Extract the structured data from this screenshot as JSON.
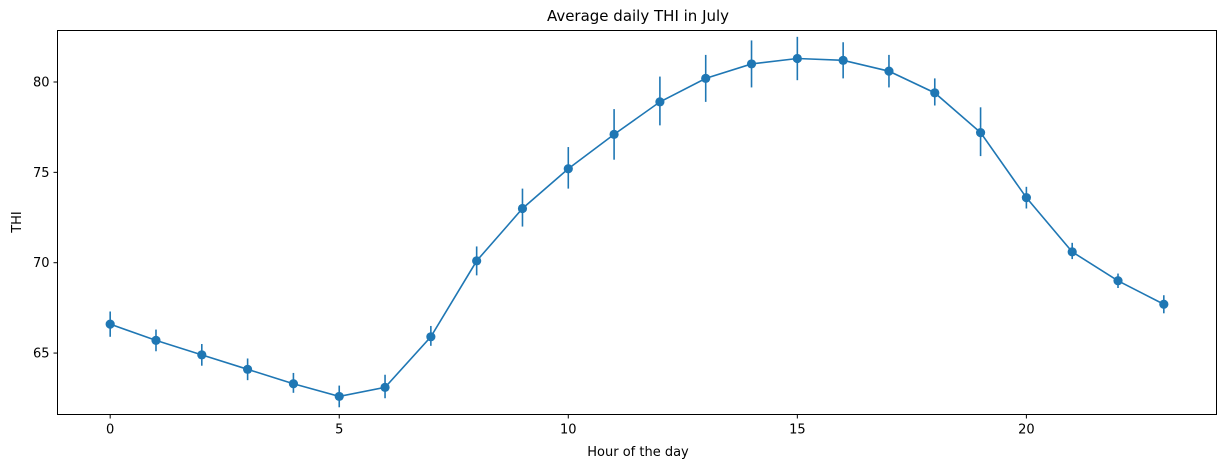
{
  "chart_data": {
    "type": "line",
    "title": "Average daily THI in July",
    "xlabel": "Hour of the day",
    "ylabel": "THI",
    "xlim": [
      -1.15,
      24.15
    ],
    "ylim": [
      61.6,
      82.85
    ],
    "xticks": [
      0,
      5,
      10,
      15,
      20
    ],
    "yticks": [
      65,
      70,
      75,
      80
    ],
    "grid": false,
    "legend": "none",
    "color": "#1f77b4",
    "x": [
      0,
      1,
      2,
      3,
      4,
      5,
      6,
      7,
      8,
      9,
      10,
      11,
      12,
      13,
      14,
      15,
      16,
      17,
      18,
      19,
      20,
      21,
      22,
      23
    ],
    "series": [
      {
        "values": [
          66.6,
          65.7,
          64.9,
          64.1,
          63.3,
          62.6,
          63.1,
          65.9,
          70.1,
          73.0,
          75.2,
          77.1,
          78.9,
          80.2,
          81.0,
          81.3,
          81.2,
          80.6,
          79.4,
          77.2,
          73.6,
          70.6,
          69.0,
          67.7
        ],
        "error_lower": [
          65.9,
          65.1,
          64.3,
          63.5,
          62.8,
          62.0,
          62.5,
          65.4,
          69.3,
          72.0,
          74.1,
          75.7,
          77.6,
          78.9,
          79.7,
          80.1,
          80.2,
          79.7,
          78.7,
          75.9,
          73.0,
          70.2,
          68.6,
          67.2
        ],
        "error_upper": [
          67.3,
          66.3,
          65.5,
          64.7,
          63.9,
          63.2,
          63.8,
          66.5,
          70.9,
          74.1,
          76.4,
          78.5,
          80.3,
          81.5,
          82.3,
          82.5,
          82.2,
          81.5,
          80.2,
          78.6,
          74.2,
          71.1,
          69.4,
          68.2
        ]
      }
    ]
  }
}
